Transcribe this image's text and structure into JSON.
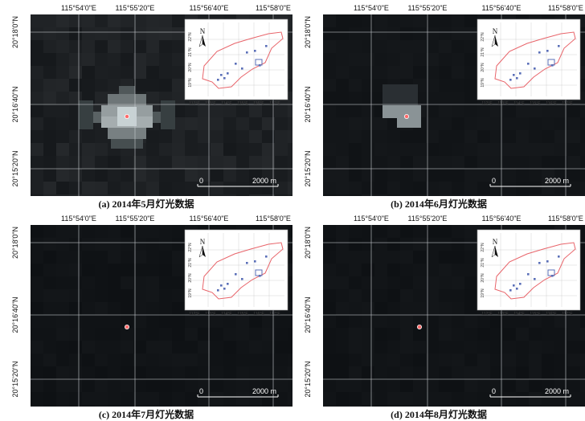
{
  "figure": {
    "panels": [
      {
        "id": "a",
        "caption": "(a) 2014年5月灯光数据",
        "glow": "bright",
        "lon_labels": [
          "115°54'0\"E",
          "115°55'20\"E",
          "115°56'40\"E",
          "115°58'0\"E"
        ],
        "lat_labels": [
          "20°18'0\"N",
          "20°16'40\"N",
          "20°15'20\"N"
        ],
        "scale_label": "2000 m",
        "scale_zero": "0",
        "north_label": "N",
        "inset_lon_labels": [
          "112°E",
          "113°E",
          "114°E",
          "115°E",
          "116°E",
          "117°E"
        ],
        "inset_lat_labels": [
          "22°N",
          "21°N",
          "20°N",
          "19°N"
        ]
      },
      {
        "id": "b",
        "caption": "(b) 2014年6月灯光数据",
        "glow": "dim",
        "lon_labels": [
          "115°54'0\"E",
          "115°55'20\"E",
          "115°56'40\"E",
          "115°58'0\"E"
        ],
        "lat_labels": [
          "20°18'0\"N",
          "20°16'40\"N",
          "20°15'20\"N"
        ],
        "scale_label": "2000 m",
        "scale_zero": "0",
        "north_label": "N",
        "inset_lon_labels": [
          "112°E",
          "113°E",
          "114°E",
          "115°E",
          "116°E",
          "117°E"
        ],
        "inset_lat_labels": [
          "22°N",
          "21°N",
          "20°N",
          "19°N"
        ]
      },
      {
        "id": "c",
        "caption": "(c) 2014年7月灯光数据",
        "glow": "none",
        "lon_labels": [
          "115°54'0\"E",
          "115°55'20\"E",
          "115°56'40\"E",
          "115°58'0\"E"
        ],
        "lat_labels": [
          "20°18'0\"N",
          "20°16'40\"N",
          "20°15'20\"N"
        ],
        "scale_label": "2000 m",
        "scale_zero": "0",
        "north_label": "N",
        "inset_lon_labels": [
          "112°E",
          "113°E",
          "114°E",
          "115°E",
          "116°E",
          "117°E"
        ],
        "inset_lat_labels": [
          "22°N",
          "21°N",
          "20°N",
          "19°N"
        ]
      },
      {
        "id": "d",
        "caption": "(d) 2014年8月灯光数据",
        "glow": "none",
        "lon_labels": [
          "115°54'0\"E",
          "115°55'20\"E",
          "115°56'40\"E",
          "115°58'0\"E"
        ],
        "lat_labels": [
          "20°18'0\"N",
          "20°16'40\"N",
          "20°15'20\"N"
        ],
        "scale_label": "2000 m",
        "scale_zero": "0",
        "north_label": "N",
        "inset_lon_labels": [
          "112°E",
          "113°E",
          "114°E",
          "115°E",
          "116°E",
          "117°E"
        ],
        "inset_lat_labels": [
          "22°N",
          "21°N",
          "20°N",
          "19°N"
        ]
      }
    ],
    "colors": {
      "map_background": "#1b1e22",
      "grid_line": "#c9cdd2",
      "target_marker": "#ff6a6a",
      "inset_outline": "#e8646a",
      "inset_points": "#5a6fb8",
      "inset_grid": "#c8c8c8"
    }
  }
}
